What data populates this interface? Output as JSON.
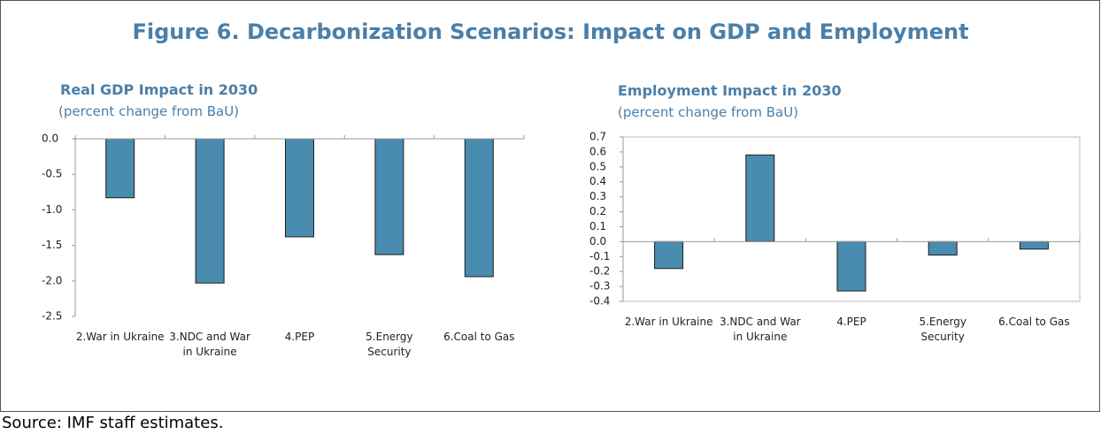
{
  "title": "Figure 6. Decarbonization Scenarios: Impact on GDP and Employment",
  "source": "Source: IMF staff estimates.",
  "chart_data": [
    {
      "type": "bar",
      "title": "Real GDP Impact in 2030",
      "subtitle": "(percent change from BaU)",
      "categories": [
        "2.War in Ukraine",
        "3.NDC and War in Ukraine",
        "4.PEP",
        "5.Energy Security",
        "6.Coal to Gas"
      ],
      "values": [
        -0.83,
        -2.03,
        -1.38,
        -1.63,
        -1.94
      ],
      "color": "#4a8bb0",
      "ylim": [
        -2.5,
        0
      ],
      "yticks": [
        {
          "value": 0,
          "label": "0.0"
        },
        -0.5,
        {
          "value": -1,
          "label": "-1.0"
        },
        -1.5,
        {
          "value": -2,
          "label": "-2.0"
        },
        -2.5
      ]
    },
    {
      "type": "bar",
      "title": "Employment Impact in 2030",
      "subtitle": "(percent change from BaU)",
      "categories": [
        "2.War in Ukraine",
        "3.NDC and War in Ukraine",
        "4.PEP",
        "5.Energy Security",
        "6.Coal to Gas"
      ],
      "values": [
        -0.18,
        0.58,
        -0.33,
        -0.09,
        -0.05
      ],
      "color": "#4a8bb0",
      "ylim": [
        -0.4,
        0.7
      ],
      "yticks": [
        0.7,
        0.6,
        0.5,
        0.4,
        0.3,
        0.2,
        0.1,
        {
          "value": 0,
          "label": "0.0"
        },
        -0.1,
        -0.2,
        -0.3,
        -0.4
      ]
    }
  ]
}
